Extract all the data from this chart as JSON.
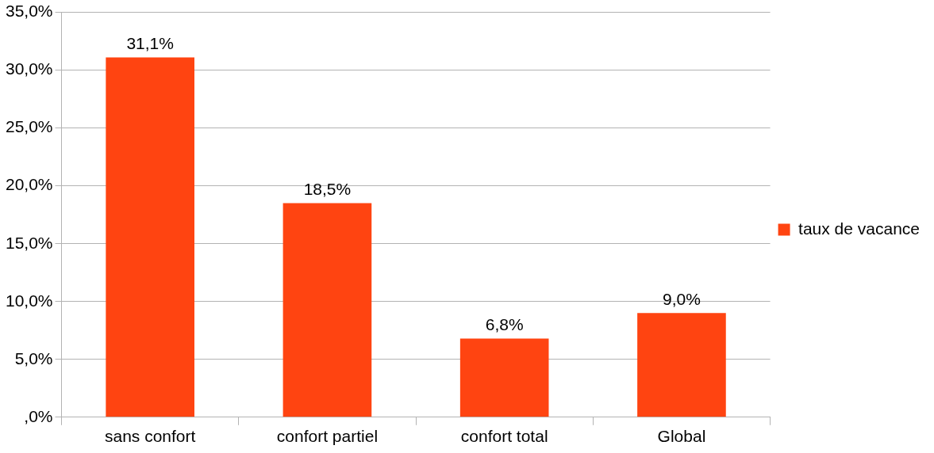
{
  "chart_data": {
    "type": "bar",
    "categories": [
      "sans confort",
      "confort partiel",
      "confort total",
      "Global"
    ],
    "series": [
      {
        "name": "taux de vacance",
        "color": "#ff4411",
        "values": [
          31.1,
          18.5,
          6.8,
          9.0
        ]
      }
    ],
    "value_labels": [
      "31,1%",
      "18,5%",
      "6,8%",
      "9,0%"
    ],
    "ylim": [
      0,
      35
    ],
    "yticks": [
      {
        "value": 0,
        "label": ",0%"
      },
      {
        "value": 5,
        "label": "5,0%"
      },
      {
        "value": 10,
        "label": "10,0%"
      },
      {
        "value": 15,
        "label": "15,0%"
      },
      {
        "value": 20,
        "label": "20,0%"
      },
      {
        "value": 25,
        "label": "25,0%"
      },
      {
        "value": 30,
        "label": "30,0%"
      },
      {
        "value": 35,
        "label": "35,0%"
      }
    ],
    "grid": "y",
    "legend": "right"
  }
}
